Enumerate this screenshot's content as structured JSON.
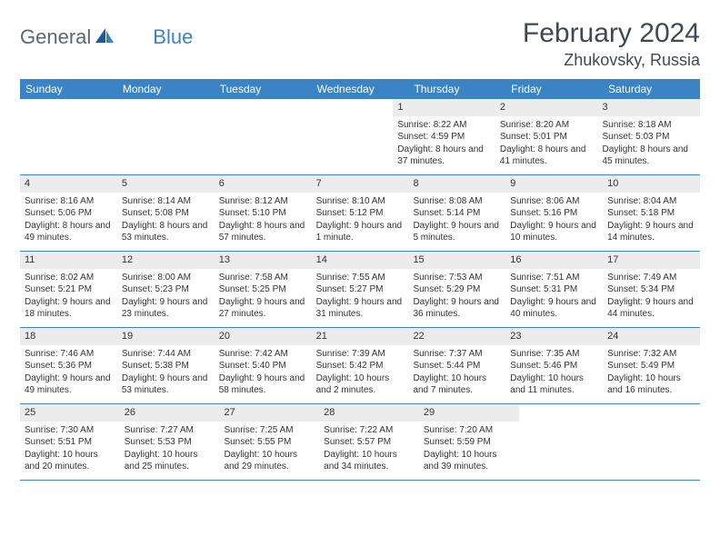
{
  "brand": {
    "first": "General",
    "second": "Blue"
  },
  "title": "February 2024",
  "location": "Zhukovsky, Russia",
  "colors": {
    "accent": "#3a83c5",
    "header_bg": "#3a83c5",
    "daynum_bg": "#ececec",
    "text": "#333333",
    "title_color": "#404952"
  },
  "weekdays": [
    "Sunday",
    "Monday",
    "Tuesday",
    "Wednesday",
    "Thursday",
    "Friday",
    "Saturday"
  ],
  "calendar": {
    "type": "table",
    "columns": 7,
    "rows": 5,
    "first_weekday_index": 4,
    "days": [
      {
        "n": 1,
        "sr": "8:22 AM",
        "ss": "4:59 PM",
        "dl": "8 hours and 37 minutes."
      },
      {
        "n": 2,
        "sr": "8:20 AM",
        "ss": "5:01 PM",
        "dl": "8 hours and 41 minutes."
      },
      {
        "n": 3,
        "sr": "8:18 AM",
        "ss": "5:03 PM",
        "dl": "8 hours and 45 minutes."
      },
      {
        "n": 4,
        "sr": "8:16 AM",
        "ss": "5:06 PM",
        "dl": "8 hours and 49 minutes."
      },
      {
        "n": 5,
        "sr": "8:14 AM",
        "ss": "5:08 PM",
        "dl": "8 hours and 53 minutes."
      },
      {
        "n": 6,
        "sr": "8:12 AM",
        "ss": "5:10 PM",
        "dl": "8 hours and 57 minutes."
      },
      {
        "n": 7,
        "sr": "8:10 AM",
        "ss": "5:12 PM",
        "dl": "9 hours and 1 minute."
      },
      {
        "n": 8,
        "sr": "8:08 AM",
        "ss": "5:14 PM",
        "dl": "9 hours and 5 minutes."
      },
      {
        "n": 9,
        "sr": "8:06 AM",
        "ss": "5:16 PM",
        "dl": "9 hours and 10 minutes."
      },
      {
        "n": 10,
        "sr": "8:04 AM",
        "ss": "5:18 PM",
        "dl": "9 hours and 14 minutes."
      },
      {
        "n": 11,
        "sr": "8:02 AM",
        "ss": "5:21 PM",
        "dl": "9 hours and 18 minutes."
      },
      {
        "n": 12,
        "sr": "8:00 AM",
        "ss": "5:23 PM",
        "dl": "9 hours and 23 minutes."
      },
      {
        "n": 13,
        "sr": "7:58 AM",
        "ss": "5:25 PM",
        "dl": "9 hours and 27 minutes."
      },
      {
        "n": 14,
        "sr": "7:55 AM",
        "ss": "5:27 PM",
        "dl": "9 hours and 31 minutes."
      },
      {
        "n": 15,
        "sr": "7:53 AM",
        "ss": "5:29 PM",
        "dl": "9 hours and 36 minutes."
      },
      {
        "n": 16,
        "sr": "7:51 AM",
        "ss": "5:31 PM",
        "dl": "9 hours and 40 minutes."
      },
      {
        "n": 17,
        "sr": "7:49 AM",
        "ss": "5:34 PM",
        "dl": "9 hours and 44 minutes."
      },
      {
        "n": 18,
        "sr": "7:46 AM",
        "ss": "5:36 PM",
        "dl": "9 hours and 49 minutes."
      },
      {
        "n": 19,
        "sr": "7:44 AM",
        "ss": "5:38 PM",
        "dl": "9 hours and 53 minutes."
      },
      {
        "n": 20,
        "sr": "7:42 AM",
        "ss": "5:40 PM",
        "dl": "9 hours and 58 minutes."
      },
      {
        "n": 21,
        "sr": "7:39 AM",
        "ss": "5:42 PM",
        "dl": "10 hours and 2 minutes."
      },
      {
        "n": 22,
        "sr": "7:37 AM",
        "ss": "5:44 PM",
        "dl": "10 hours and 7 minutes."
      },
      {
        "n": 23,
        "sr": "7:35 AM",
        "ss": "5:46 PM",
        "dl": "10 hours and 11 minutes."
      },
      {
        "n": 24,
        "sr": "7:32 AM",
        "ss": "5:49 PM",
        "dl": "10 hours and 16 minutes."
      },
      {
        "n": 25,
        "sr": "7:30 AM",
        "ss": "5:51 PM",
        "dl": "10 hours and 20 minutes."
      },
      {
        "n": 26,
        "sr": "7:27 AM",
        "ss": "5:53 PM",
        "dl": "10 hours and 25 minutes."
      },
      {
        "n": 27,
        "sr": "7:25 AM",
        "ss": "5:55 PM",
        "dl": "10 hours and 29 minutes."
      },
      {
        "n": 28,
        "sr": "7:22 AM",
        "ss": "5:57 PM",
        "dl": "10 hours and 34 minutes."
      },
      {
        "n": 29,
        "sr": "7:20 AM",
        "ss": "5:59 PM",
        "dl": "10 hours and 39 minutes."
      }
    ]
  },
  "labels": {
    "sunrise_prefix": "Sunrise: ",
    "sunset_prefix": "Sunset: ",
    "daylight_prefix": "Daylight: "
  }
}
